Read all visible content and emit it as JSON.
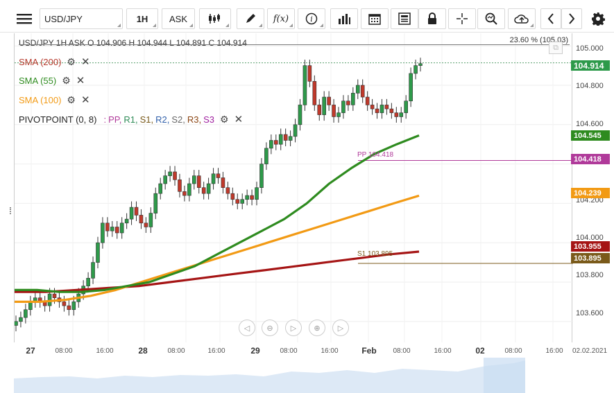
{
  "toolbar": {
    "menu_icon": "hamburger-icon",
    "symbol": "USD/JPY",
    "timeframe": "1H",
    "price_side": "ASK",
    "fx_label": "f(x)"
  },
  "header": {
    "ohlc": "USD/JPY  1H  ASK  O 104.906 H 104.944 L 104.891 C 104.914",
    "fib": "23.60 % (105.03)"
  },
  "legend": [
    {
      "label": "SMA (200)",
      "color": "#b5372a"
    },
    {
      "label": "SMA (55)",
      "color": "#2e8b1f"
    },
    {
      "label": "SMA (100)",
      "color": "#f29a14"
    }
  ],
  "pivot": {
    "label": "PIVOTPOINT (0, 8)",
    "sep": ":",
    "items": [
      {
        "t": "PP,",
        "c": "#b03a9a"
      },
      {
        "t": "R1,",
        "c": "#2e8b57"
      },
      {
        "t": "S1,",
        "c": "#7a5a1a"
      },
      {
        "t": "R2,",
        "c": "#2f5faa"
      },
      {
        "t": "S2,",
        "c": "#666666"
      },
      {
        "t": "R3,",
        "c": "#8b4513"
      },
      {
        "t": "S3",
        "c": "#a020a0"
      }
    ]
  },
  "price_axis": [
    "105.000",
    "104.800",
    "104.600",
    "104.400",
    "104.200",
    "104.000",
    "103.800",
    "103.600"
  ],
  "badges": {
    "last": {
      "value": "104.914",
      "color": "#2d9a4a"
    },
    "sma55": {
      "value": "104.545",
      "color": "#2e8b1f"
    },
    "pp": {
      "value": "104.418",
      "color": "#b03a9a"
    },
    "sma100": {
      "value": "104.239",
      "color": "#f29a14"
    },
    "sma200": {
      "value": "103.955",
      "color": "#a51414"
    },
    "s1": {
      "value": "103.895",
      "color": "#7a5a1a"
    }
  },
  "pp_line_label": "PP 104.418",
  "s1_line_label": "S1 103.895",
  "time_axis": {
    "days": [
      "27",
      "28",
      "29",
      "Feb",
      "02"
    ],
    "hours": [
      "08:00",
      "16:00",
      "08:00",
      "16:00",
      "08:00",
      "16:00",
      "08:00",
      "16:00",
      "08:00",
      "16:00"
    ],
    "date_corner": "02.02.2021"
  },
  "chart_data": {
    "type": "candlestick",
    "series_up_color": "#2e9a4a",
    "series_down_color": "#c0392b",
    "candles_close": [
      103.6,
      103.62,
      103.66,
      103.7,
      103.72,
      103.7,
      103.68,
      103.74,
      103.72,
      103.7,
      103.68,
      103.66,
      103.7,
      103.74,
      103.78,
      103.82,
      103.9,
      104.0,
      104.1,
      104.06,
      104.08,
      104.05,
      104.1,
      104.12,
      104.18,
      104.14,
      104.1,
      104.08,
      104.15,
      104.25,
      104.3,
      104.34,
      104.36,
      104.32,
      104.26,
      104.24,
      104.3,
      104.34,
      104.28,
      104.25,
      104.3,
      104.35,
      104.33,
      104.28,
      104.25,
      104.22,
      104.2,
      104.22,
      104.24,
      104.22,
      104.28,
      104.4,
      104.48,
      104.52,
      104.5,
      104.55,
      104.52,
      104.54,
      104.6,
      104.7,
      104.9,
      104.82,
      104.7,
      104.65,
      104.74,
      104.7,
      104.64,
      104.66,
      104.72,
      104.7,
      104.76,
      104.8,
      104.74,
      104.7,
      104.68,
      104.66,
      104.7,
      104.68,
      104.66,
      104.64,
      104.66,
      104.72,
      104.86,
      104.9,
      104.91
    ],
    "sma55": [
      103.76,
      103.76,
      103.75,
      103.75,
      103.76,
      103.78,
      103.8,
      103.84,
      103.88,
      103.94,
      104.0,
      104.06,
      104.12,
      104.2,
      104.3,
      104.38,
      104.45,
      104.5,
      104.545
    ],
    "sma100": [
      103.7,
      103.7,
      103.71,
      103.73,
      103.76,
      103.8,
      103.84,
      103.88,
      103.92,
      103.96,
      104.0,
      104.04,
      104.08,
      104.12,
      104.16,
      104.2,
      104.239
    ],
    "sma200": [
      103.75,
      103.75,
      103.76,
      103.77,
      103.78,
      103.8,
      103.82,
      103.84,
      103.86,
      103.88,
      103.9,
      103.92,
      103.94,
      103.955
    ],
    "pp": 104.418,
    "s1": 103.895,
    "ylim": [
      103.55,
      105.05
    ]
  }
}
